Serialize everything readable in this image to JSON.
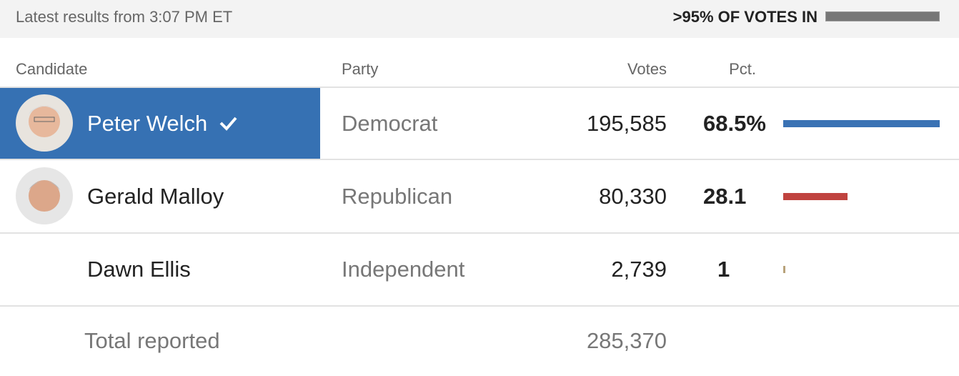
{
  "header": {
    "updated": "Latest results from 3:07 PM ET",
    "reporting": ">95% OF VOTES IN"
  },
  "table": {
    "columns": [
      "Candidate",
      "Party",
      "Votes",
      "Pct."
    ],
    "rows": [
      {
        "candidate": "Peter Welch",
        "party": "Democrat",
        "votes": "195,585",
        "pct": {
          "value": 68.5,
          "label": "68.5%"
        },
        "color": "#3a72b4"
      },
      {
        "candidate": "Gerald Malloy",
        "party": "Republican",
        "votes": "80,330",
        "pct": 28.1,
        "color": "#c0433f"
      },
      {
        "candidate": "Dawn Ellis",
        "party": "Independent",
        "votes": "2,739",
        "pct": 1.0,
        "color": "#b8a27a"
      }
    ],
    "total": {
      "label": "Total reported",
      "votes": "285,370"
    }
  }
}
